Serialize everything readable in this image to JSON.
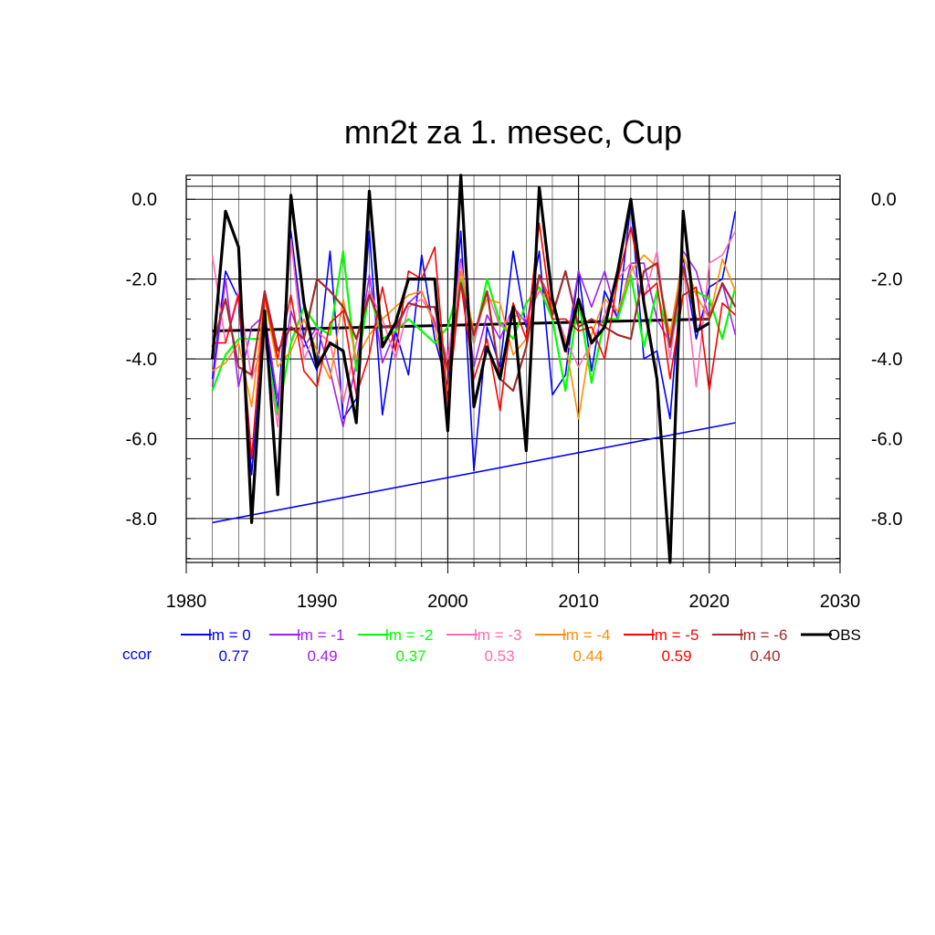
{
  "chart_data": {
    "type": "line",
    "title": "mn2t za 1. mesec, Cup",
    "xlabel": "",
    "ylabel": "",
    "xlim": [
      1980,
      2030
    ],
    "ylim": [
      -9.1,
      0.6
    ],
    "x_ticks": [
      1980,
      1990,
      2000,
      2010,
      2020,
      2030
    ],
    "y_ticks": [
      0.0,
      -2.0,
      -4.0,
      -6.0,
      -8.0
    ],
    "y_tick_labels": [
      "0.0",
      "-2.0",
      "-4.0",
      "-6.0",
      "-8.0"
    ],
    "grid": true,
    "legend_position": "bottom",
    "ccor_label": "ccor",
    "ccor_color": "#0000ff",
    "x": [
      1982,
      1983,
      1984,
      1985,
      1986,
      1987,
      1988,
      1989,
      1990,
      1991,
      1992,
      1993,
      1994,
      1995,
      1996,
      1997,
      1998,
      1999,
      2000,
      2001,
      2002,
      2003,
      2004,
      2005,
      2006,
      2007,
      2008,
      2009,
      2010,
      2011,
      2012,
      2013,
      2014,
      2015,
      2016,
      2017,
      2018,
      2019,
      2020,
      2021,
      2022
    ],
    "series": [
      {
        "name": "lm = 0",
        "ccor": "0.77",
        "color": "#0000ff",
        "width": 1.6,
        "values": [
          -4.5,
          -1.8,
          -2.5,
          -6.9,
          -3.0,
          -5.3,
          -0.8,
          -3.5,
          -4.3,
          -1.3,
          -5.5,
          -5.0,
          -0.8,
          -5.4,
          -3.3,
          -4.4,
          -1.4,
          -3.5,
          -4.7,
          -0.8,
          -6.8,
          -3.2,
          -4.2,
          -1.3,
          -3.2,
          -1.3,
          -4.9,
          -4.4,
          -1.8,
          -4.3,
          -2.3,
          -3.0,
          -0.1,
          -4.0,
          -3.8,
          -5.5,
          -1.5,
          -3.5,
          -2.2,
          -2.0,
          -0.3
        ]
      },
      {
        "name": "lm = -1",
        "ccor": "0.49",
        "color": "#a020f0",
        "width": 1.6,
        "values": [
          -4.7,
          -2.0,
          -4.7,
          -3.2,
          -2.9,
          -5.0,
          -2.8,
          -3.7,
          -3.2,
          -4.3,
          -5.7,
          -4.1,
          -1.9,
          -4.1,
          -3.3,
          -2.6,
          -2.3,
          -3.1,
          -4.0,
          -1.5,
          -4.2,
          -2.9,
          -3.5,
          -2.7,
          -3.1,
          -1.9,
          -2.6,
          -3.8,
          -1.8,
          -2.7,
          -1.8,
          -3.0,
          -1.6,
          -1.6,
          -3.0,
          -3.6,
          -1.3,
          -1.8,
          -3.0,
          -2.1,
          -3.4
        ]
      },
      {
        "name": "lm = -2",
        "ccor": "0.37",
        "color": "#00ff00",
        "width": 2.2,
        "values": [
          -4.8,
          -3.9,
          -3.5,
          -3.5,
          -3.5,
          -5.4,
          -3.6,
          -2.7,
          -3.2,
          -3.4,
          -1.3,
          -4.3,
          -2.3,
          -3.5,
          -3.3,
          -3.0,
          -3.3,
          -3.6,
          -3.2,
          -2.0,
          -3.6,
          -2.0,
          -3.1,
          -3.5,
          -2.6,
          -2.2,
          -3.0,
          -4.8,
          -2.5,
          -4.6,
          -3.0,
          -3.0,
          -1.9,
          -3.7,
          -2.3,
          -3.6,
          -2.4,
          -2.3,
          -2.5,
          -3.5,
          -2.2
        ]
      },
      {
        "name": "lm = -3",
        "ccor": "0.53",
        "color": "#ff69b4",
        "width": 1.6,
        "values": [
          -1.4,
          -3.6,
          -2.3,
          -4.5,
          -3.5,
          -5.7,
          -1.0,
          -4.0,
          -3.3,
          -3.6,
          -5.1,
          -3.6,
          -2.3,
          -3.0,
          -4.0,
          -2.7,
          -2.5,
          -3.0,
          -4.0,
          -1.6,
          -3.6,
          -2.3,
          -3.2,
          -2.9,
          -3.0,
          -2.3,
          -2.6,
          -3.5,
          -4.2,
          -3.6,
          -2.9,
          -2.0,
          -1.6,
          -2.5,
          -1.3,
          -4.0,
          -1.6,
          -4.7,
          -1.6,
          -1.4,
          -0.8
        ]
      },
      {
        "name": "lm = -4",
        "ccor": "0.44",
        "color": "#ff8c00",
        "width": 1.6,
        "values": [
          -4.3,
          -4.1,
          -3.6,
          -5.2,
          -2.5,
          -4.2,
          -3.8,
          -3.0,
          -3.8,
          -4.5,
          -2.5,
          -4.0,
          -3.4,
          -3.0,
          -2.7,
          -2.4,
          -2.3,
          -3.2,
          -4.8,
          -1.8,
          -3.3,
          -2.5,
          -2.6,
          -3.9,
          -3.5,
          -1.9,
          -2.7,
          -3.6,
          -5.5,
          -3.4,
          -2.5,
          -2.8,
          -1.8,
          -1.4,
          -1.7,
          -3.4,
          -1.4,
          -2.4,
          -3.0,
          -1.5,
          -2.3
        ]
      },
      {
        "name": "lm = -5",
        "ccor": "0.59",
        "color": "#ff0000",
        "width": 1.6,
        "values": [
          -3.6,
          -3.6,
          -2.4,
          -6.5,
          -2.4,
          -4.0,
          -2.4,
          -4.3,
          -4.7,
          -3.1,
          -2.8,
          -4.9,
          -3.9,
          -2.2,
          -3.8,
          -1.8,
          -2.0,
          -1.2,
          -5.1,
          -2.1,
          -4.5,
          -3.5,
          -5.3,
          -2.6,
          -3.5,
          -0.6,
          -3.0,
          -3.0,
          -3.3,
          -3.2,
          -4.0,
          -2.0,
          -0.7,
          -2.4,
          -2.1,
          -4.5,
          -2.4,
          -2.2,
          -4.8,
          -2.6,
          -2.9
        ]
      },
      {
        "name": "lm = -6",
        "ccor": "0.40",
        "color": "#a52a2a",
        "width": 2.2,
        "values": [
          -3.7,
          -2.5,
          -4.2,
          -4.4,
          -2.3,
          -3.8,
          -3.2,
          -3.5,
          -2.0,
          -2.3,
          -2.7,
          -3.5,
          -2.4,
          -3.2,
          -3.2,
          -2.6,
          -2.7,
          -2.7,
          -4.3,
          -2.1,
          -3.4,
          -2.3,
          -4.5,
          -4.8,
          -3.7,
          -1.9,
          -2.9,
          -1.8,
          -3.2,
          -3.0,
          -3.2,
          -3.4,
          -3.5,
          -1.8,
          -1.6,
          -3.7,
          -1.7,
          -3.0,
          -3.0,
          -2.1,
          -2.7
        ]
      },
      {
        "name": "OBS",
        "ccor": "",
        "color": "#000000",
        "width": 3.2,
        "values": [
          -4.0,
          -0.3,
          -1.2,
          -8.1,
          -2.8,
          -7.4,
          0.1,
          -2.6,
          -4.2,
          -3.6,
          -3.8,
          -5.6,
          0.2,
          -3.7,
          -3.1,
          -2.0,
          -2.0,
          -2.0,
          -5.8,
          0.6,
          -5.2,
          -3.7,
          -4.5,
          -2.7,
          -6.3,
          0.3,
          -2.5,
          -3.8,
          -2.5,
          -3.6,
          -3.2,
          -1.8,
          0.0,
          -2.6,
          -4.5,
          -9.1,
          -0.3,
          -3.3,
          -3.1,
          null,
          null
        ]
      }
    ],
    "trend_lines": [
      {
        "name": "OBS trend",
        "color": "#000000",
        "width": 3,
        "x": [
          1982,
          2020
        ],
        "y": [
          -3.3,
          -3.0
        ]
      },
      {
        "name": "lm = 0 trend",
        "color": "#0000ff",
        "width": 1.6,
        "x": [
          1982,
          2022
        ],
        "y": [
          -8.1,
          -5.6
        ]
      }
    ]
  }
}
